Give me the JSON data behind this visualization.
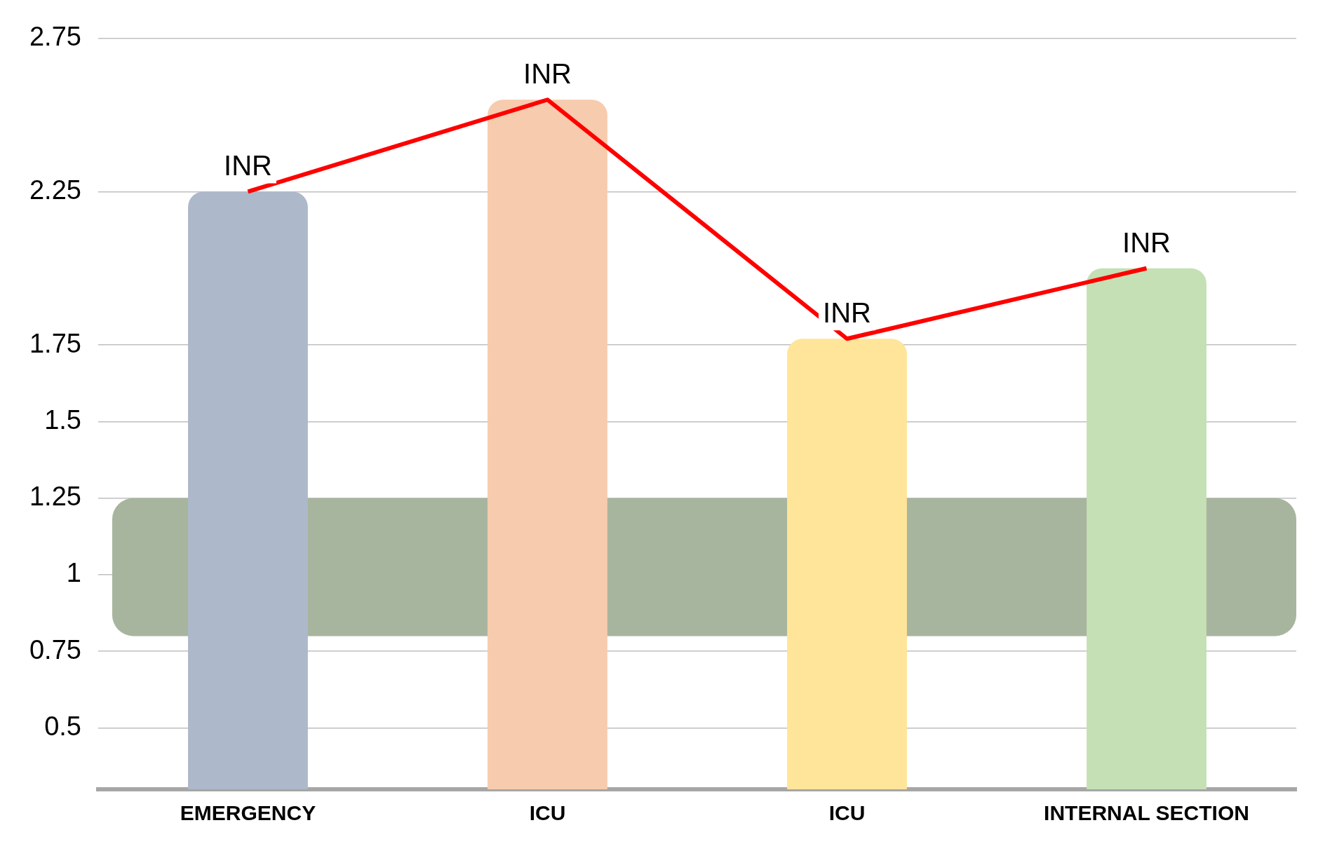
{
  "chart_data": {
    "type": "bar",
    "categories": [
      "EMERGENCY",
      "ICU",
      "ICU",
      "INTERNAL SECTION"
    ],
    "series": [
      {
        "colors": [
          "#adb8ca",
          "#f7cbad",
          "#ffe599",
          "#c5e0b4"
        ],
        "values": [
          2.25,
          2.55,
          1.77,
          2.0
        ]
      },
      {
        "type": "line",
        "color": "#ff0000",
        "values": [
          2.25,
          2.55,
          1.77,
          2.0
        ]
      }
    ],
    "ylim": [
      0.3,
      2.75
    ],
    "yticks": [
      0.5,
      0.75,
      1,
      1.25,
      1.5,
      1.75,
      2.25,
      2.75
    ],
    "bands": [
      {
        "axis": "y",
        "from": 0.8,
        "to": 1.25,
        "color": "#a8b59e"
      }
    ],
    "annotations": [
      "INR",
      "INR",
      "INR",
      "INR"
    ],
    "grid": "y",
    "legend": false,
    "marker": "none",
    "line_style": "solid"
  }
}
